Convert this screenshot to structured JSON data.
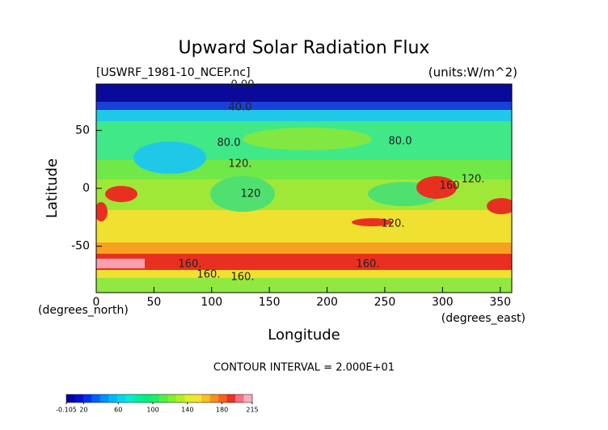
{
  "chart_data": {
    "type": "contour",
    "title": "Upward Solar Radiation Flux",
    "subtitle": "[USWRF_1981-10_NCEP.nc]",
    "units": "(units:W/m^2)",
    "x_label": "Longitude",
    "y_label": "Latitude",
    "x_units": "(degrees_east)",
    "y_units": "(degrees_north)",
    "footer": "CONTOUR INTERVAL = 2.000E+01",
    "xlim": [
      0,
      360
    ],
    "ylim": [
      -90,
      90
    ],
    "xticks": [
      0,
      50,
      100,
      150,
      200,
      250,
      300,
      350
    ],
    "yticks": [
      -50,
      0,
      50
    ],
    "annotations": [
      "0.00",
      "40.0",
      "80.0",
      "80.0",
      "120.",
      "120.",
      "160",
      "120",
      "120.",
      "160.",
      "160.",
      "160.",
      "160."
    ],
    "colorbar": {
      "clim": [
        -0.105,
        215
      ],
      "ticks": [
        -0.105,
        20,
        60,
        100,
        140,
        180,
        215
      ],
      "colors": [
        "#0000a0",
        "#0010d0",
        "#0030f0",
        "#0060ff",
        "#0090ff",
        "#00b8ff",
        "#00d8f0",
        "#00f0d0",
        "#00f0a0",
        "#00f080",
        "#20f060",
        "#50f040",
        "#80f030",
        "#b0f020",
        "#e0f020",
        "#f8e030",
        "#f8c020",
        "#f89020",
        "#f86020",
        "#f03020",
        "#f87080",
        "#f8b0c0"
      ]
    }
  }
}
